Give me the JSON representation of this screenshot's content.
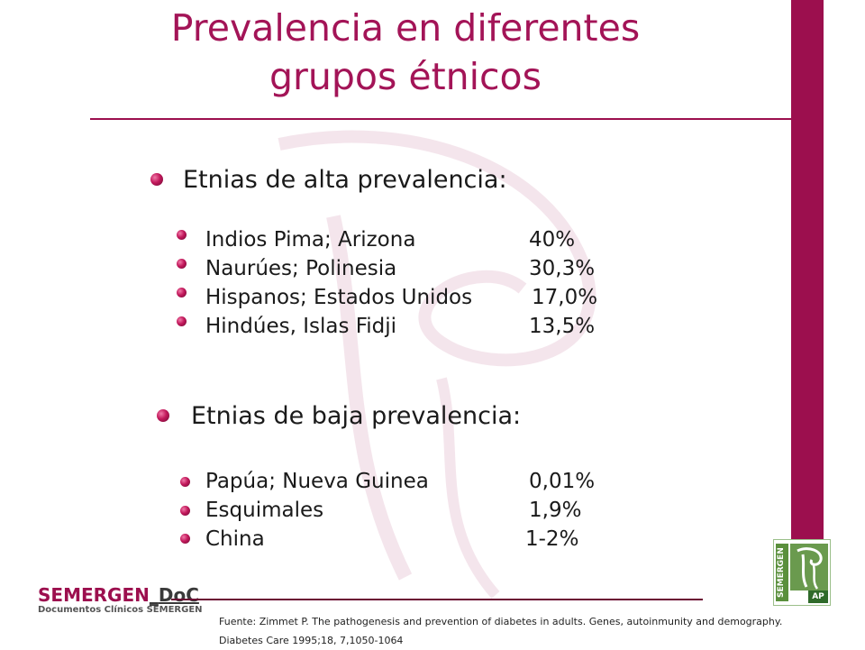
{
  "title": {
    "line1": "Prevalencia en diferentes",
    "line2": "grupos étnicos"
  },
  "high": {
    "heading": "Etnias de alta prevalencia:",
    "items": [
      {
        "name": "Indios Pima; Arizona",
        "value": "40%"
      },
      {
        "name": "Naurúes; Polinesia",
        "value": "30,3%"
      },
      {
        "name": "Hispanos; Estados Unidos",
        "value": "17,0%"
      },
      {
        "name": "Hindúes, Islas Fidji",
        "value": "13,5%"
      }
    ]
  },
  "low": {
    "heading": "Etnias de baja prevalencia:",
    "items": [
      {
        "name": "Papúa; Nueva Guinea",
        "value": "0,01%"
      },
      {
        "name": "Esquimales",
        "value": "1,9%"
      },
      {
        "name": "China",
        "value": "1-2%"
      }
    ]
  },
  "logo": {
    "brand": "SEMERGEN",
    "brand_suffix": "DoC",
    "subtitle": "Documentos Clínicos SEMERGEN",
    "corner_vertical": "SEMERGEN",
    "corner_ap": "AP"
  },
  "source": {
    "line1": "Fuente: Zimmet P. The pathogenesis and prevention of diabetes in adults. Genes, autoinmunity  and demography.",
    "line2": "Diabetes Care 1995;18, 7,1050-1064"
  },
  "colors": {
    "accent": "#9c0f4e",
    "title": "#a31457",
    "text": "#1a1a1a"
  }
}
